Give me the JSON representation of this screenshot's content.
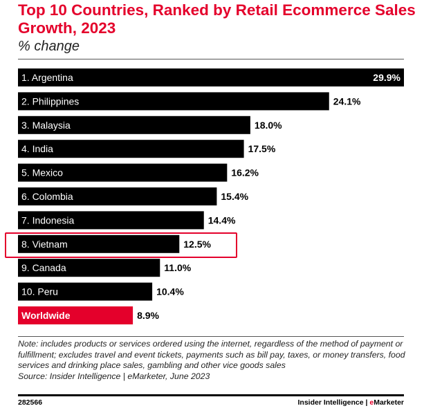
{
  "chart_data": {
    "type": "bar",
    "orientation": "horizontal",
    "title": "Top 10 Countries, Ranked by Retail Ecommerce Sales Growth, 2023",
    "subtitle": "% change",
    "categories": [
      "1. Argentina",
      "2. Philippines",
      "3. Malaysia",
      "4. India",
      "5. Mexico",
      "6. Colombia",
      "7. Indonesia",
      "8. Vietnam",
      "9. Canada",
      "10. Peru",
      "Worldwide"
    ],
    "values": [
      29.9,
      24.1,
      18.0,
      17.5,
      16.2,
      15.4,
      14.4,
      12.5,
      11.0,
      10.4,
      8.9
    ],
    "value_labels": [
      "29.9%",
      "24.1%",
      "18.0%",
      "17.5%",
      "16.2%",
      "15.4%",
      "14.4%",
      "12.5%",
      "11.0%",
      "10.4%",
      "8.9%"
    ],
    "xlim": [
      0,
      29.9
    ],
    "grid": false,
    "highlighted": "8. Vietnam",
    "colors": {
      "bar": "#000000",
      "worldwide": "#e4002b",
      "highlight_box": "#e4002b"
    }
  },
  "note": "Note: includes products or services ordered using the internet, regardless of the method of payment or fulfillment; excludes travel and event tickets, payments such as bill pay, taxes, or money transfers, food services and drinking place sales, gambling and other vice goods sales",
  "source": "Source: Insider Intelligence | eMarketer, June 2023",
  "chart_id": "282566",
  "brand": {
    "part1": "Insider Intelligence | ",
    "part2": "e",
    "part3": "Marketer"
  }
}
